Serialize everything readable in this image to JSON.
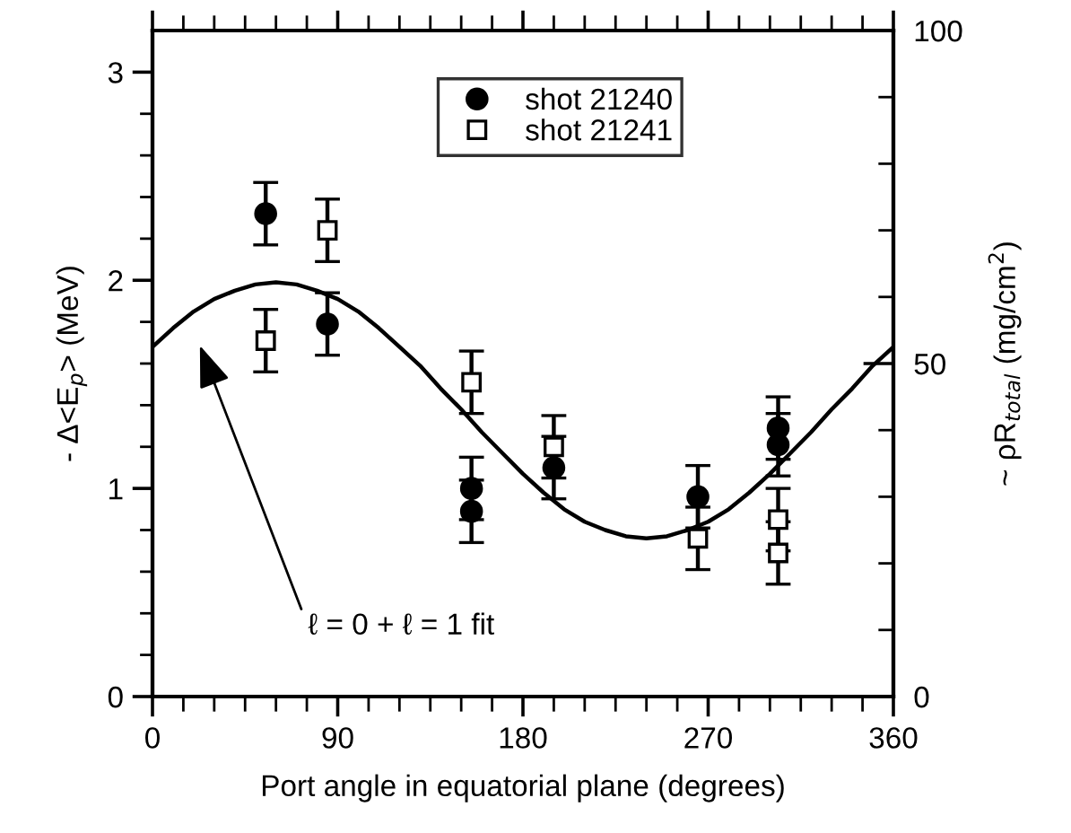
{
  "chart_data": {
    "type": "scatter",
    "xlabel": "Port angle in equatorial plane (degrees)",
    "ylabel": "- Δ<E$_{p}$> (MeV)",
    "y2label": "~ ρR$_{total}$ (mg/cm$^{2}$)",
    "xlim": [
      0,
      360
    ],
    "ylim": [
      0,
      3.2
    ],
    "y2lim": [
      0,
      100
    ],
    "xticks": [
      0,
      {
        "value": 15,
        "label": null
      },
      {
        "value": 30,
        "label": null
      },
      {
        "value": 45,
        "label": null
      },
      {
        "value": 60,
        "label": null
      },
      {
        "value": 75,
        "label": null
      },
      90,
      {
        "value": 105,
        "label": null
      },
      {
        "value": 120,
        "label": null
      },
      {
        "value": 135,
        "label": null
      },
      {
        "value": 150,
        "label": null
      },
      {
        "value": 165,
        "label": null
      },
      180,
      {
        "value": 195,
        "label": null
      },
      {
        "value": 210,
        "label": null
      },
      {
        "value": 225,
        "label": null
      },
      {
        "value": 240,
        "label": null
      },
      {
        "value": 255,
        "label": null
      },
      270,
      {
        "value": 285,
        "label": null
      },
      {
        "value": 300,
        "label": null
      },
      {
        "value": 315,
        "label": null
      },
      {
        "value": 330,
        "label": null
      },
      {
        "value": 345,
        "label": null
      },
      360
    ],
    "yticks": [
      0,
      {
        "value": 0.2,
        "label": null
      },
      {
        "value": 0.4,
        "label": null
      },
      {
        "value": 0.6,
        "label": null
      },
      {
        "value": 0.8,
        "label": null
      },
      1,
      {
        "value": 1.2,
        "label": null
      },
      {
        "value": 1.4,
        "label": null
      },
      {
        "value": 1.6,
        "label": null
      },
      {
        "value": 1.8,
        "label": null
      },
      2,
      {
        "value": 2.2,
        "label": null
      },
      {
        "value": 2.4,
        "label": null
      },
      {
        "value": 2.6,
        "label": null
      },
      {
        "value": 2.8,
        "label": null
      },
      3
    ],
    "y2ticks": [
      0,
      {
        "value": 10,
        "label": null
      },
      {
        "value": 20,
        "label": null
      },
      {
        "value": 30,
        "label": null
      },
      {
        "value": 40,
        "label": null
      },
      50,
      {
        "value": 60,
        "label": null
      },
      {
        "value": 70,
        "label": null
      },
      {
        "value": 80,
        "label": null
      },
      {
        "value": 90,
        "label": null
      },
      100
    ],
    "grid": false,
    "legend": "top",
    "annotations": [
      "ℓ = 0 + ℓ = 1 fit"
    ],
    "series": [
      {
        "name": "shot 21240",
        "marker": "circle",
        "color": "#000000",
        "x": [
          55,
          85,
          155,
          155,
          195,
          265,
          304,
          304
        ],
        "values": [
          2.32,
          1.79,
          1.0,
          0.89,
          1.1,
          0.96,
          1.29,
          1.21
        ],
        "errors": [
          0.15,
          0.15,
          0.15,
          0.15,
          0.15,
          0.15,
          0.15,
          0.15
        ]
      },
      {
        "name": "shot 21241",
        "marker": "square",
        "color": "#000000",
        "x": [
          55,
          85,
          155,
          195,
          265,
          304,
          304
        ],
        "values": [
          1.71,
          2.24,
          1.51,
          1.2,
          0.76,
          0.85,
          0.69
        ],
        "errors": [
          0.15,
          0.15,
          0.15,
          0.15,
          0.15,
          0.15,
          0.15
        ]
      },
      {
        "type": "line",
        "color": "#000000",
        "line_style": "solid",
        "marker": "none",
        "x": [
          0,
          10,
          20,
          30,
          40,
          50,
          60,
          70,
          80,
          90,
          100,
          110,
          120,
          130,
          140,
          150,
          160,
          170,
          180,
          190,
          200,
          210,
          220,
          230,
          240,
          250,
          260,
          270,
          280,
          290,
          300,
          310,
          320,
          330,
          340,
          350,
          360
        ],
        "values": [
          1.68,
          1.77,
          1.85,
          1.91,
          1.95,
          1.98,
          1.99,
          1.98,
          1.95,
          1.91,
          1.85,
          1.77,
          1.68,
          1.59,
          1.48,
          1.38,
          1.27,
          1.17,
          1.07,
          0.98,
          0.9,
          0.84,
          0.8,
          0.77,
          0.76,
          0.77,
          0.8,
          0.84,
          0.9,
          0.98,
          1.07,
          1.17,
          1.27,
          1.38,
          1.48,
          1.59,
          1.68
        ]
      }
    ]
  }
}
